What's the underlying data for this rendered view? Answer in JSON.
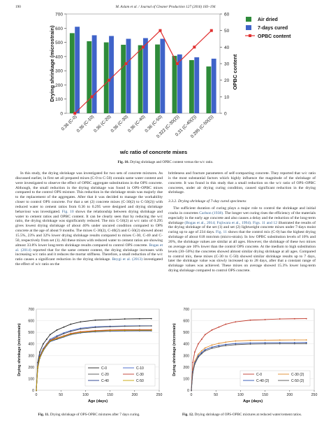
{
  "header": {
    "page_number": "190",
    "journal": "M. Aslam et al. / Journal of Cleaner Production 127 (2016) 183–194"
  },
  "fig10": {
    "caption_label": "Fig. 10.",
    "caption_text": "Drying shrinkage and OPBC content versus the w/c ratio."
  },
  "fig11": {
    "caption_label": "Fig. 11.",
    "caption_text": "Drying shrinkage of OPS-OPBC mixtures after 7 days curing."
  },
  "fig12": {
    "caption_label": "Fig. 12.",
    "caption_text": "Drying shrinkage of OPS-OPBC mixtures at reduced water/cement ratios."
  },
  "text_left": {
    "p1": "In this study, the drying shrinkage was investigated for two sets of concrete mixtures. As discussed earlier, in first set all prepared mixes (C-0 to C-50) contain same water content and were investigated to observe the effect of OPBC aggregate substitutions in the OPS concrete. Although, the small reduction in the drying shrinkage was found in OPS–OPBC mixes compared to the control OPS mixture. This reduction in the shrinkage strain was majorly due to the replacement of the aggregates. After that it was decided to manage the workability closer to control OPS concrete. For that a set (2) concrete mixes (C-30(2) to C-50(2)) with reduced water to cement ratios from 0.36 to 0.295 were designed and drying shrinkage behaviour was investigated.",
    "p1_ref1": "Fig. 10",
    "p1_b": "shows the relationship between drying shrinkage and water to cement ratios and OPBC content. It can be clearly seen that by reducing the w/c ratio, the drying shrinkage was significantly reduced. The mix C-50(2) at w/c ratio of 0.295 gives lowest drying shrinkage of about 40% under uncured condition compared to OPS concrete at the age of about 9 months. The mixes C-30(2), C-40(2) and C-50(2) showed about 15.5%, 23% and 32% lower drying shrinkage results compared to mixes C-30, C-40 and C-50, respectively from set (1). All these mixes with reduced water to cement ratios are showing almost 33.8% lower long-term shrinkage results compared to control OPS concrete.",
    "p1_ref2": "Bogas et al. (2014)",
    "p1_c": "reported that for the same cement content, the drying shrinkage increases with increasing w/c ratio and it reduces the mortar stiffness. Therefore, a small reduction of the w/c ratio causes a significant reduction in the drying shrinkage.",
    "p1_ref3": "Beygi et al. (2013)",
    "p1_d": "investigated the effect of w/c ratio on the"
  },
  "text_right": {
    "p0": "brittleness and fracture parameters of self-compacting concrete. They reported that w/c ratio is the most substantial factors which highly influence the magnitude of the shrinkage of concrete. It was found in this study that a small reduction on the w/c ratio of OPS–OPBC concretes, under air drying curing condition, caused significant reduction in the drying shrinkage.",
    "section": "3.3.2. Drying shrinkage of 7-day cured specimens",
    "p1a": "The sufficient duration of curing plays a major role to control the shrinkage and initial cracks in concretes",
    "p1_ref1": "Carlson (1938).",
    "p1b": "The longer wet curing rises the efficiency of the materials especially in the early age concrete and also causes a delay and the reduction of the long-term shrinkage",
    "p1_ref2": "(Bogas et al., 2014; Fujiwara et al., 1994).",
    "p1_ref3": "Figs. 11 and 12",
    "p1c": "illustrated the results of the drying shrinkage of the set (1) and set (2) lightweight concrete mixes under 7-days moist curing up to age of 234 days.",
    "p1_ref4": "Fig. 11",
    "p1d": "shows that the control mix (C-0) has the highest drying shrinkage of about 618 mm/mm (micro-strain). In low OPBC substitution levels of 10% and 20%, the shrinkage values are similar at all ages. However, the shrinkage of these two mixes on average are 10% lower than the control OPS concrete. At the medium to high substitution levels (30–50%) the concretes showed almost similar drying shrinkage at all ages. Compared to control mix, these mixes (C-30 to C-50) showed similar shrinkage results up to 7 days, later the shrinkage value was slowly increased up to 28 days, after that a constant range of shrinkage values was achieved. These mixes on average showed 15.3% lower long-term drying shrinkage compared to control OPS concrete."
  },
  "chart_data": [
    {
      "type": "bar",
      "id": "fig10",
      "categories": [
        "0.36 (C-0)",
        "0.36 (C-10)",
        "0.36 (C-20)",
        "0.36 (C-30)",
        "0.36 (C-40)",
        "0.36 (C-50)",
        "0.322 (C-30(2))",
        "0.31 (C-40(2))",
        "0.295 (C-50(2))"
      ],
      "series": [
        {
          "name": "Air dried",
          "color": "#2e8b3a",
          "values": [
            565,
            508,
            500,
            483,
            480,
            485,
            405,
            375,
            330
          ]
        },
        {
          "name": "7-days cured",
          "color": "#3f63c9",
          "values": [
            610,
            550,
            545,
            525,
            530,
            525,
            415,
            395,
            385
          ]
        },
        {
          "name": "OPBC content",
          "color": "#e03030",
          "axis": "right",
          "values": [
            0,
            10,
            20,
            30,
            40,
            50,
            30,
            40,
            50
          ]
        }
      ],
      "xlabel": "w/c ratio of concrete mixes",
      "ylabel": "Drying shrinkage (microstrain)",
      "y2label": "OPBC content",
      "ylim": [
        0,
        700
      ],
      "y2lim": [
        0,
        60
      ],
      "yticks": [
        "0",
        "100",
        "200",
        "300",
        "400",
        "500",
        "600",
        "700"
      ],
      "y2ticks": [
        "0",
        "10",
        "20",
        "30",
        "40",
        "50",
        "60"
      ]
    },
    {
      "type": "line",
      "id": "fig11",
      "xlabel": "Age (days)",
      "ylabel": "Drying shrinkage (microstrain)",
      "xlim": [
        0,
        250
      ],
      "ylim": [
        0,
        700
      ],
      "xticks": [
        "0",
        "50",
        "100",
        "150",
        "200",
        "250"
      ],
      "yticks": [
        "0",
        "100",
        "200",
        "300",
        "400",
        "500",
        "600",
        "700"
      ],
      "x": [
        0,
        3,
        7,
        14,
        21,
        28,
        42,
        56,
        70,
        90,
        120,
        150,
        180,
        210,
        234
      ],
      "series": [
        {
          "name": "C-0",
          "color": "#222222",
          "values": [
            0,
            240,
            330,
            400,
            440,
            480,
            520,
            545,
            570,
            590,
            605,
            610,
            615,
            617,
            618
          ]
        },
        {
          "name": "C-10",
          "color": "#3f63c9",
          "values": [
            0,
            220,
            300,
            360,
            400,
            440,
            470,
            495,
            515,
            535,
            548,
            552,
            555,
            556,
            556
          ]
        },
        {
          "name": "C-20",
          "color": "#555555",
          "values": [
            0,
            210,
            290,
            350,
            390,
            430,
            462,
            488,
            508,
            528,
            542,
            548,
            552,
            554,
            555
          ]
        },
        {
          "name": "C-30",
          "color": "#c0392b",
          "values": [
            0,
            200,
            285,
            350,
            395,
            430,
            450,
            470,
            490,
            505,
            515,
            520,
            522,
            523,
            523
          ]
        },
        {
          "name": "C-40",
          "color": "#1f3a8a",
          "values": [
            0,
            190,
            275,
            340,
            385,
            420,
            440,
            460,
            480,
            495,
            505,
            510,
            512,
            513,
            513
          ]
        },
        {
          "name": "C-50",
          "color": "#c9a300",
          "values": [
            0,
            195,
            280,
            345,
            390,
            425,
            445,
            465,
            485,
            500,
            510,
            515,
            517,
            518,
            518
          ]
        }
      ]
    },
    {
      "type": "line",
      "id": "fig12",
      "xlabel": "Age (days)",
      "ylabel": "Drying shrinkage (microstrain)",
      "xlim": [
        0,
        250
      ],
      "ylim": [
        0,
        700
      ],
      "xticks": [
        "0",
        "50",
        "100",
        "150",
        "200",
        "250"
      ],
      "yticks": [
        "0",
        "100",
        "200",
        "300",
        "400",
        "500",
        "600",
        "700"
      ],
      "x": [
        0,
        3,
        7,
        14,
        21,
        28,
        42,
        56,
        70,
        90,
        120,
        150,
        180,
        210,
        234
      ],
      "series": [
        {
          "name": "C-0",
          "color": "#c0392b",
          "values": [
            0,
            240,
            330,
            400,
            440,
            480,
            520,
            545,
            570,
            590,
            605,
            610,
            615,
            617,
            618
          ]
        },
        {
          "name": "C-30 (2)",
          "color": "#e08a2a",
          "values": [
            0,
            170,
            250,
            310,
            340,
            365,
            390,
            405,
            415,
            425,
            430,
            432,
            433,
            434,
            434
          ]
        },
        {
          "name": "C-40 (2)",
          "color": "#2a4fb0",
          "values": [
            0,
            160,
            235,
            295,
            325,
            350,
            372,
            385,
            395,
            403,
            408,
            410,
            411,
            411,
            412
          ]
        },
        {
          "name": "C-50 (2)",
          "color": "#555555",
          "values": [
            0,
            150,
            225,
            285,
            315,
            340,
            362,
            375,
            385,
            393,
            398,
            400,
            401,
            401,
            402
          ]
        }
      ]
    }
  ]
}
